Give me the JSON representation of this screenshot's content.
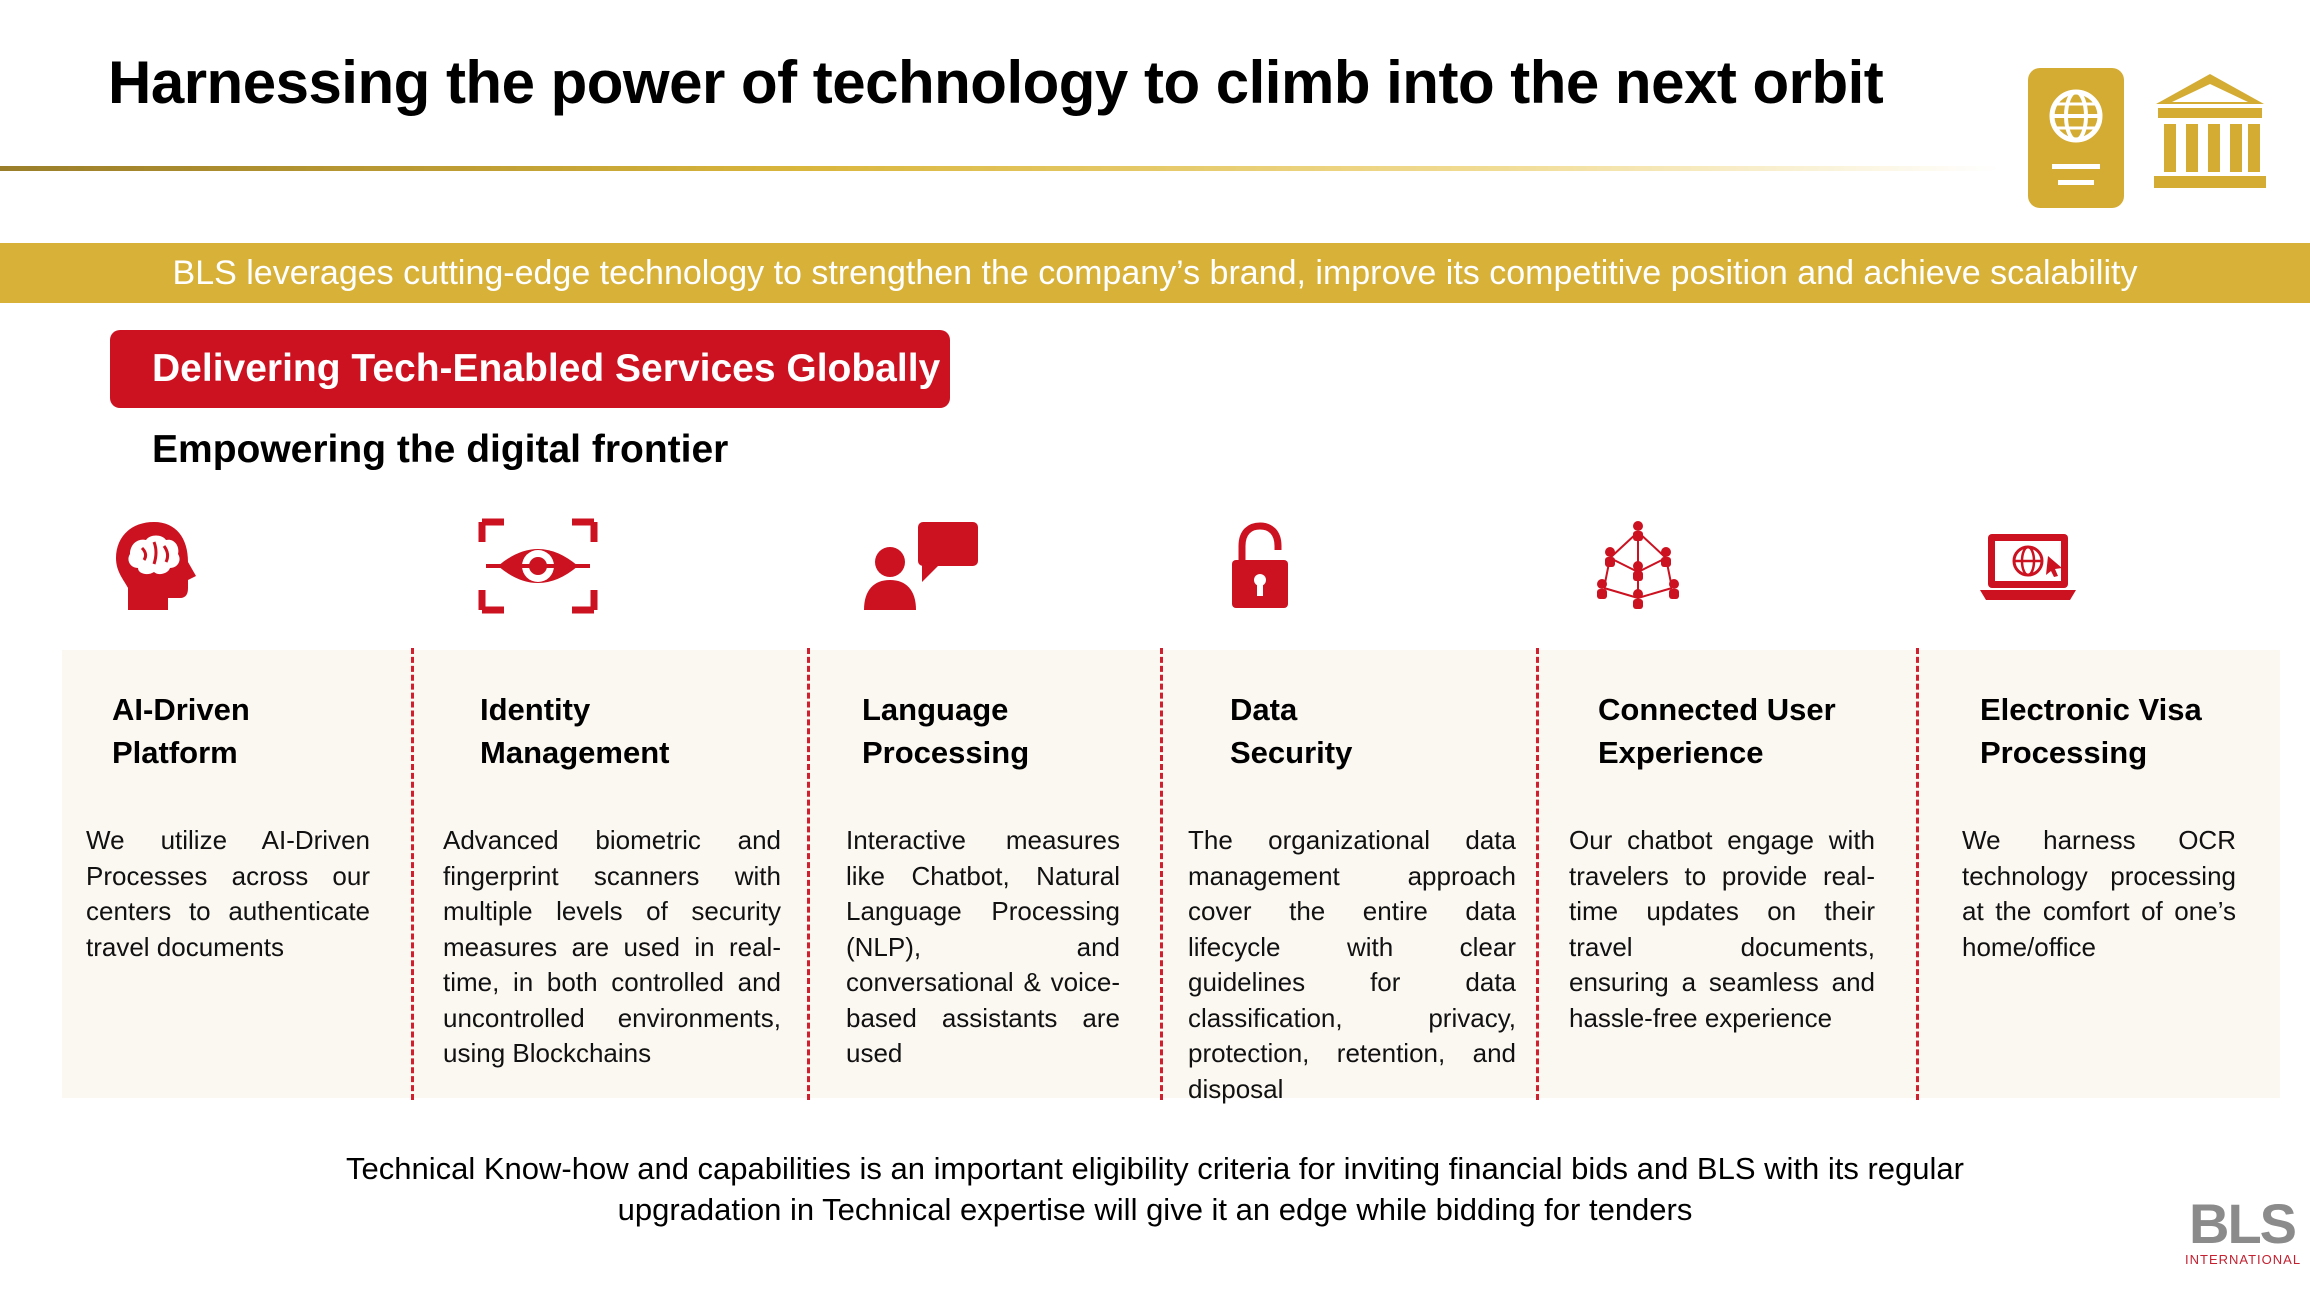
{
  "header": {
    "title": "Harnessing the power of technology to climb into the next orbit",
    "emblems": [
      "passport-icon",
      "government-building-icon"
    ]
  },
  "banner": {
    "text": "BLS leverages cutting-edge technology to strengthen the company’s brand, improve its competitive position and achieve scalability"
  },
  "section": {
    "pill_label": "Delivering Tech-Enabled Services Globally",
    "subheading": "Empowering the digital frontier"
  },
  "columns": [
    {
      "icon": "brain-head-icon",
      "title_line1": "AI-Driven",
      "title_line2": "Platform",
      "description": "We utilize AI-Driven Processes across our centers to authenticate travel documents"
    },
    {
      "icon": "eye-scan-icon",
      "title_line1": "Identity",
      "title_line2": "Management",
      "description": "Advanced biometric and fingerprint scanners with multiple  levels of security measures are used in real-time, in both controlled and uncontrolled environments, using Blockchains"
    },
    {
      "icon": "person-chat-icon",
      "title_line1": "Language",
      "title_line2": "Processing",
      "description": "Interactive measures like Chatbot, Natural Language Processing (NLP), and conversational & voice-based assistants are used"
    },
    {
      "icon": "padlock-icon",
      "title_line1": "Data",
      "title_line2": "Security",
      "description": "The organizational data management approach cover the entire data lifecycle with clear guidelines for data classification, privacy, protection, retention, and disposal"
    },
    {
      "icon": "network-people-icon",
      "title_line1": "Connected User",
      "title_line2": "Experience",
      "description": "Our chatbot engage with travelers to provide real-time updates on their travel documents, ensuring a seamless and hassle-free experience"
    },
    {
      "icon": "laptop-globe-icon",
      "title_line1": "Electronic Visa",
      "title_line2": "Processing",
      "description": "We harness OCR technology processing at the comfort of one’s home/office"
    }
  ],
  "footer": {
    "line1": "Technical Know-how and capabilities is an important eligibility criteria for inviting financial bids and BLS with its regular",
    "line2": "upgradation in Technical expertise will give it an edge while bidding for tenders"
  },
  "logo": {
    "mark": "BLS",
    "sub": "INTERNATIONAL"
  },
  "colors": {
    "accent_red": "#cc1120",
    "gold": "#d7b138",
    "panel_bg": "#fbf8f2"
  }
}
